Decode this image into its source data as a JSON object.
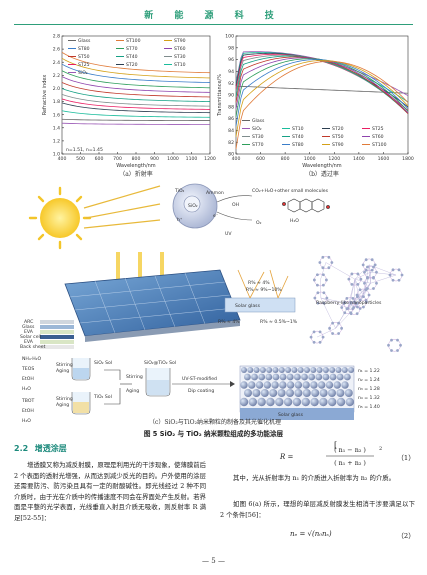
{
  "header": {
    "journal_title": "新 能 源 科 技"
  },
  "chart_data": [
    {
      "type": "line",
      "caption": "（a）折射率",
      "xlabel": "Wavelength/nm",
      "ylabel": "Refractive index",
      "xlim": [
        400,
        1200
      ],
      "ylim": [
        1.0,
        2.8
      ],
      "x_ticks": [
        "400",
        "500",
        "600",
        "700",
        "800",
        "900",
        "1000",
        "1100",
        "1200"
      ],
      "y_ticks": [
        "1.0",
        "1.2",
        "1.4",
        "1.6",
        "1.8",
        "2.0",
        "2.2",
        "2.4",
        "2.6",
        "2.8"
      ],
      "legend_placement": "top",
      "annotation": "n=1.51, n=1.45",
      "series": [
        {
          "name": "Glass",
          "color": "#666666",
          "values_at_400_1200": [
            1.53,
            1.51
          ]
        },
        {
          "name": "ST100",
          "color": "#e07b39",
          "values_at_400_1200": [
            2.55,
            2.24
          ]
        },
        {
          "name": "ST90",
          "color": "#d4a017",
          "values_at_400_1200": [
            2.46,
            2.16
          ]
        },
        {
          "name": "ST80",
          "color": "#3a7dc9",
          "values_at_400_1200": [
            2.37,
            2.09
          ]
        },
        {
          "name": "ST70",
          "color": "#2e9e5b",
          "values_at_400_1200": [
            2.27,
            2.01
          ]
        },
        {
          "name": "ST60",
          "color": "#8e44ad",
          "values_at_400_1200": [
            2.18,
            1.94
          ]
        },
        {
          "name": "ST50",
          "color": "#c0392b",
          "values_at_400_1200": [
            2.09,
            1.87
          ]
        },
        {
          "name": "ST40",
          "color": "#16a085",
          "values_at_400_1200": [
            2.0,
            1.8
          ]
        },
        {
          "name": "ST30",
          "color": "#7f8c8d",
          "values_at_400_1200": [
            1.91,
            1.73
          ]
        },
        {
          "name": "ST25",
          "color": "#e91e63",
          "values_at_400_1200": [
            1.84,
            1.68
          ]
        },
        {
          "name": "ST20",
          "color": "#2c3e50",
          "values_at_400_1200": [
            1.78,
            1.63
          ]
        },
        {
          "name": "ST10",
          "color": "#1abc9c",
          "values_at_400_1200": [
            1.66,
            1.56
          ]
        },
        {
          "name": "SiO₂",
          "color": "#9b59b6",
          "values_at_400_1200": [
            1.47,
            1.45
          ]
        }
      ]
    },
    {
      "type": "line",
      "caption": "（b）透过率",
      "xlabel": "Wavelength/nm",
      "ylabel": "Transmittance/%",
      "xlim": [
        400,
        1800
      ],
      "ylim": [
        80,
        100
      ],
      "x_ticks": [
        "400",
        "600",
        "800",
        "1000",
        "1200",
        "1400",
        "1600",
        "1800"
      ],
      "y_ticks": [
        "80",
        "82",
        "84",
        "86",
        "88",
        "90",
        "92",
        "94",
        "96",
        "98",
        "100"
      ],
      "legend_placement": "bottom",
      "series": [
        {
          "name": "Glass",
          "color": "#666666"
        },
        {
          "name": "SiO₂",
          "color": "#9b59b6"
        },
        {
          "name": "ST10",
          "color": "#1abc9c"
        },
        {
          "name": "ST20",
          "color": "#2c3e50"
        },
        {
          "name": "ST25",
          "color": "#e91e63"
        },
        {
          "name": "ST30",
          "color": "#7f8c8d"
        },
        {
          "name": "ST40",
          "color": "#16a085"
        },
        {
          "name": "ST50",
          "color": "#c0392b"
        },
        {
          "name": "ST60",
          "color": "#8e44ad"
        },
        {
          "name": "ST70",
          "color": "#2e9e5b"
        },
        {
          "name": "ST80",
          "color": "#3a7dc9"
        },
        {
          "name": "ST90",
          "color": "#d4a017"
        },
        {
          "name": "ST100",
          "color": "#e07b39"
        }
      ]
    }
  ],
  "diagram": {
    "caption": "（c）SiO₂与TiO₂纳米颗粒的制备及其光催化机理",
    "sun_label": "",
    "nano_labels": [
      "SiO₂",
      "TiO₂",
      "Ammon",
      "CO₂+H₂O+other small molecules",
      "e⁻",
      "h⁺",
      "H₂O",
      "OH",
      "O₂",
      "UV"
    ],
    "stack_labels": [
      "ARC",
      "Glass",
      "EVA",
      "Solar cell",
      "EVA",
      "Back sheet"
    ],
    "ray_labels": [
      "R% ≈ 4%",
      "R% ≈ 9%~10%",
      "R% ≈ 4%",
      "R% ≈ 0.5%~1%"
    ],
    "left_chem": [
      "NH₄·H₂O",
      "TEOS",
      "EtOH",
      "H₂O",
      "TBOT",
      "EtOH",
      "H₂O"
    ],
    "process_labels": [
      "Stirring",
      "Aging",
      "SiO₂ Sol",
      "Stirring",
      "Aging",
      "TiO₂ Sol",
      "Stirring",
      "Aging",
      "SiO₂@TiO₂ Sol",
      "UV-ST-modified",
      "Dip coating",
      "Solar glass"
    ],
    "product_labels": [
      "Raspberry-like nanoparticles",
      "Solar glass"
    ],
    "n_values": [
      "n₁ = 1.22",
      "n₂ = 1.24",
      "n₃ = 1.28",
      "n₄ = 1.32",
      "n₅ = 1.40"
    ]
  },
  "figure_caption": "图 5   SiO₂ 与 TiO₂ 纳米颗粒组成的多功能涂层",
  "section": {
    "number": "2.2",
    "title": "增透涂层"
  },
  "left_paragraph": "增透膜又称为减反射膜，原理是利用光的干涉现象，使薄膜前后 2 个表面的透射光增强，从而达到减少反光的目的。户外使用的涂层还需要防污、防污染且具有一定的耐酸碱性。即光线经过 2 种不同介质时，由于光在介质中的传播速度不同会在界面处产生反射。若界面是平整的光学表面，光线垂直入射且介质无吸收，则反射率 R 满足[52-55]：",
  "equation1": {
    "lhs": "R =",
    "numerator": "( n₁ − n₂ )",
    "denominator": "( n₁ + n₂ )",
    "power": "2",
    "number": "（1）"
  },
  "para_after_eq1": "其中，光从折射率为 n₁ 的介质进入折射率为 n₂ 的介质。",
  "para_eq2_intro": "如图 6(a) 所示，理想的单层减反射膜发生相消干涉要满足以下 2 个条件[56]：",
  "equation2": {
    "text": "nₑ = √(n₀nₛ)",
    "number": "（2）"
  },
  "page_number": "— 5 —"
}
